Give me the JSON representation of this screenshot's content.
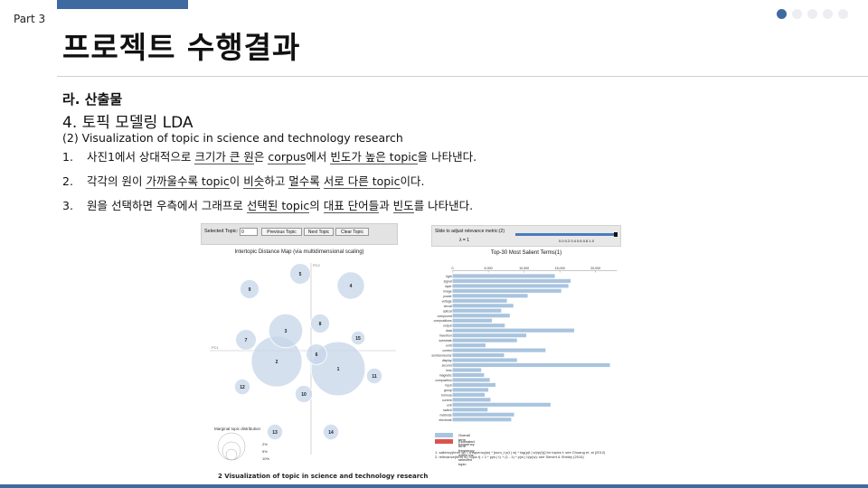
{
  "header": {
    "part": "Part 3",
    "title": "프로젝트 수행결과"
  },
  "nav_dots": {
    "count": 5,
    "active_index": 0,
    "active_color": "#3e6aa1"
  },
  "content": {
    "section": "라. 산출물",
    "subtitle": "4. 토픽 모델링 LDA",
    "subtitle2": "(2) Visualization of topic in science and technology research",
    "items": [
      {
        "num": "1.",
        "segments": [
          {
            "t": "사진1에서 상대적으로 ",
            "u": false
          },
          {
            "t": "크기가 큰 원",
            "u": true
          },
          {
            "t": "은 ",
            "u": false
          },
          {
            "t": "corpus",
            "u": true
          },
          {
            "t": "에서 ",
            "u": false
          },
          {
            "t": "빈도가 높은 topic",
            "u": true
          },
          {
            "t": "을 나타낸다.",
            "u": false
          }
        ]
      },
      {
        "num": "2.",
        "segments": [
          {
            "t": "각각의 원이 ",
            "u": false
          },
          {
            "t": "가까울수록 topic",
            "u": true
          },
          {
            "t": "이 ",
            "u": false
          },
          {
            "t": "비슷",
            "u": true
          },
          {
            "t": "하고 ",
            "u": false
          },
          {
            "t": "멀수록",
            "u": true
          },
          {
            "t": " ",
            "u": false
          },
          {
            "t": "서로 다른 topic",
            "u": true
          },
          {
            "t": "이다.",
            "u": false
          }
        ]
      },
      {
        "num": "3.",
        "segments": [
          {
            "t": "원을 선택하면 우측에서 그래프로 ",
            "u": false
          },
          {
            "t": "선택된 topic",
            "u": true
          },
          {
            "t": "의 ",
            "u": false
          },
          {
            "t": "대표 단어들",
            "u": true
          },
          {
            "t": "과 ",
            "u": false
          },
          {
            "t": "빈도",
            "u": true
          },
          {
            "t": "를 나타낸다.",
            "u": false
          }
        ]
      }
    ]
  },
  "ldavis": {
    "controls": {
      "selected_topic_label": "Selected Topic:",
      "selected_topic_value": "0",
      "prev_label": "Previous Topic",
      "next_label": "Next Topic",
      "clear_label": "Clear Topic"
    },
    "map_title": "Intertopic Distance Map (via multidimensional scaling)",
    "pc1_label": "PC1",
    "pc2_label": "PC2",
    "topics": [
      {
        "id": "1",
        "pc1": 0.3,
        "pc2": -0.2,
        "size": 14
      },
      {
        "id": "2",
        "pc1": -0.38,
        "pc2": -0.12,
        "size": 13
      },
      {
        "id": "3",
        "pc1": -0.28,
        "pc2": 0.22,
        "size": 8
      },
      {
        "id": "4",
        "pc1": 0.44,
        "pc2": 0.72,
        "size": 6
      },
      {
        "id": "5",
        "pc1": -0.12,
        "pc2": 0.85,
        "size": 4
      },
      {
        "id": "6",
        "pc1": 0.06,
        "pc2": -0.04,
        "size": 4
      },
      {
        "id": "7",
        "pc1": -0.72,
        "pc2": 0.12,
        "size": 4
      },
      {
        "id": "8",
        "pc1": 0.1,
        "pc2": 0.3,
        "size": 3.5
      },
      {
        "id": "9",
        "pc1": -0.68,
        "pc2": 0.68,
        "size": 3.5
      },
      {
        "id": "10",
        "pc1": -0.08,
        "pc2": -0.48,
        "size": 3
      },
      {
        "id": "11",
        "pc1": 0.7,
        "pc2": -0.28,
        "size": 2.5
      },
      {
        "id": "12",
        "pc1": -0.76,
        "pc2": -0.4,
        "size": 2.5
      },
      {
        "id": "13",
        "pc1": -0.4,
        "pc2": -0.9,
        "size": 2.5
      },
      {
        "id": "14",
        "pc1": 0.22,
        "pc2": -0.9,
        "size": 2.5
      },
      {
        "id": "15",
        "pc1": 0.52,
        "pc2": 0.14,
        "size": 2
      }
    ],
    "marginal": {
      "title": "Marginal topic distribution",
      "levels": [
        "2%",
        "5%",
        "10%"
      ]
    }
  },
  "relevance": {
    "slider_label": "Slide to adjust relevance metric:(2)",
    "lambda_label": "λ = 1",
    "lambda_value": 1,
    "ticks": [
      "0.0",
      "0.2",
      "0.4",
      "0.6",
      "0.8",
      "1.0"
    ]
  },
  "chart_data": {
    "type": "bar",
    "title": "Top-30 Most Salient Terms(1)",
    "xlim": [
      0,
      23000
    ],
    "xticks": [
      "0",
      "5,000",
      "10,000",
      "15,000",
      "20,000"
    ],
    "categories": [
      "light",
      "signal",
      "layer",
      "image",
      "power",
      "voltage",
      "circuit",
      "optical",
      "compound",
      "compositions",
      "output",
      "data",
      "invention",
      "substrate",
      "emit",
      "control",
      "semiconductor",
      "display",
      "second",
      "lens",
      "magnetic",
      "composition",
      "input",
      "group",
      "formula",
      "current",
      "unit",
      "switch",
      "methods",
      "electrode"
    ],
    "series": [
      {
        "name": "Overall term frequency",
        "color": "#a9c4de",
        "values": [
          14300,
          16500,
          16200,
          15200,
          10500,
          7600,
          8500,
          6800,
          8000,
          5500,
          7300,
          17000,
          10300,
          9000,
          4600,
          13000,
          7200,
          9000,
          22000,
          4000,
          4400,
          5200,
          6000,
          5000,
          4500,
          5300,
          13700,
          4900,
          8600,
          8200
        ]
      }
    ]
  },
  "legend": {
    "overall": "Overall term frequency",
    "overall_color": "#a9c4de",
    "estimated": "Estimated term frequency within the selected topic",
    "estimated_color": "#d9534f"
  },
  "notes": {
    "n1": "1. saliency(term w) = frequency(w) * [sum_t p(t | w) * log(p(t | w)/p(t))] for topics t; see Chuang et. al (2012)",
    "n2": "2. relevance(term w | topic t) = λ * p(w | t) + (1 - λ) * p(w | t)/p(w); see Sievert & Shirley (2014)"
  },
  "caption": "2 Visualization of topic in science and technology research"
}
